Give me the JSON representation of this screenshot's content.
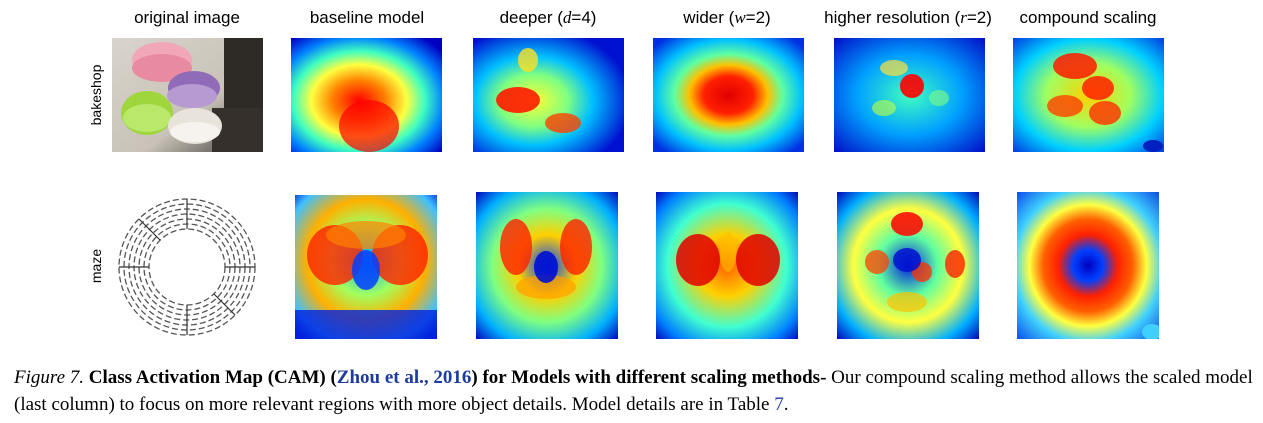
{
  "columns": [
    {
      "pre": "original image",
      "var": "",
      "post": ""
    },
    {
      "pre": "baseline model",
      "var": "",
      "post": ""
    },
    {
      "pre": "deeper (",
      "var": "d",
      "post": "=4)"
    },
    {
      "pre": "wider (",
      "var": "w",
      "post": "=2)"
    },
    {
      "pre": "higher resolution (",
      "var": "r",
      "post": "=2)"
    },
    {
      "pre": "compound scaling",
      "var": "",
      "post": ""
    }
  ],
  "rows": [
    "bakeshop",
    "maze"
  ],
  "caption": {
    "figure": "Figure 7.",
    "title_pre": "Class Activation Map (CAM) (",
    "citation": "Zhou et al., 2016",
    "title_post": ") for Models with different scaling methods-",
    "body_pre": " Our compound scaling method allows the scaled model (last column) to focus on more relevant regions with more object details. Model details are in Table ",
    "table_ref": "7",
    "body_post": "."
  },
  "colors": {
    "jet_low": "#00008f",
    "jet_mid": "#4fff9f",
    "jet_high": "#ff0000",
    "link": "#1d3c9e"
  }
}
